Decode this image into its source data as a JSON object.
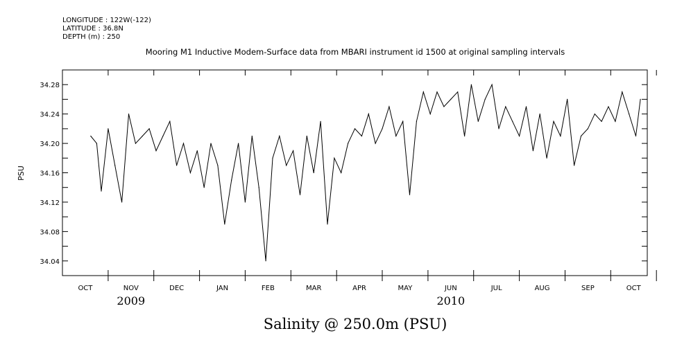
{
  "header": {
    "longitude": "LONGITUDE : 122W(-122)",
    "latitude": "LATITUDE : 36.8N",
    "depth": "DEPTH (m) : 250"
  },
  "chart_data": {
    "type": "line",
    "title": "Mooring M1 Inductive Modem-Surface data from MBARI instrument id 1500 at original sampling intervals",
    "xlabel": "Salinity @ 250.0m (PSU)",
    "ylabel": "PSU",
    "ylim": [
      34.02,
      34.3
    ],
    "yticks": [
      "34.28",
      "34.24",
      "34.20",
      "34.16",
      "34.12",
      "34.08",
      "34.04"
    ],
    "month_labels": [
      "OCT",
      "NOV",
      "DEC",
      "JAN",
      "FEB",
      "MAR",
      "APR",
      "MAY",
      "JUN",
      "JUL",
      "AUG",
      "SEP",
      "OCT"
    ],
    "year_labels": [
      "2009",
      "2010"
    ],
    "x_unit": "months since 2009-10-01",
    "xlim": [
      -0.5,
      12.3
    ],
    "series": [
      {
        "name": "Salinity",
        "x": [
          0.12,
          0.25,
          0.35,
          0.5,
          0.65,
          0.8,
          0.95,
          1.1,
          1.25,
          1.4,
          1.55,
          1.7,
          1.85,
          2.0,
          2.15,
          2.3,
          2.45,
          2.6,
          2.75,
          2.9,
          3.05,
          3.2,
          3.35,
          3.5,
          3.65,
          3.8,
          3.95,
          4.1,
          4.25,
          4.4,
          4.55,
          4.7,
          4.85,
          5.0,
          5.15,
          5.3,
          5.45,
          5.6,
          5.75,
          5.9,
          6.05,
          6.2,
          6.35,
          6.5,
          6.65,
          6.8,
          6.95,
          7.1,
          7.25,
          7.4,
          7.55,
          7.7,
          7.85,
          8.0,
          8.15,
          8.3,
          8.45,
          8.6,
          8.75,
          8.9,
          9.05,
          9.2,
          9.35,
          9.5,
          9.65,
          9.8,
          9.95,
          10.1,
          10.25,
          10.4,
          10.55,
          10.7,
          10.85,
          11.0,
          11.15,
          11.3,
          11.45,
          11.6,
          11.75,
          11.9,
          12.05,
          12.15
        ],
        "y": [
          34.21,
          34.2,
          34.135,
          34.22,
          34.17,
          34.12,
          34.24,
          34.2,
          34.21,
          34.22,
          34.19,
          34.21,
          34.23,
          34.17,
          34.2,
          34.16,
          34.19,
          34.14,
          34.2,
          34.17,
          34.09,
          34.15,
          34.2,
          34.12,
          34.21,
          34.14,
          34.04,
          34.18,
          34.21,
          34.17,
          34.19,
          34.13,
          34.21,
          34.16,
          34.23,
          34.09,
          34.18,
          34.16,
          34.2,
          34.22,
          34.21,
          34.24,
          34.2,
          34.22,
          34.25,
          34.21,
          34.23,
          34.13,
          34.23,
          34.27,
          34.24,
          34.27,
          34.25,
          34.26,
          34.27,
          34.21,
          34.28,
          34.23,
          34.26,
          34.28,
          34.22,
          34.25,
          34.23,
          34.21,
          34.25,
          34.19,
          34.24,
          34.18,
          34.23,
          34.21,
          34.26,
          34.17,
          34.21,
          34.22,
          34.24,
          34.23,
          34.25,
          34.23,
          34.27,
          34.24,
          34.21,
          34.26
        ]
      }
    ]
  }
}
